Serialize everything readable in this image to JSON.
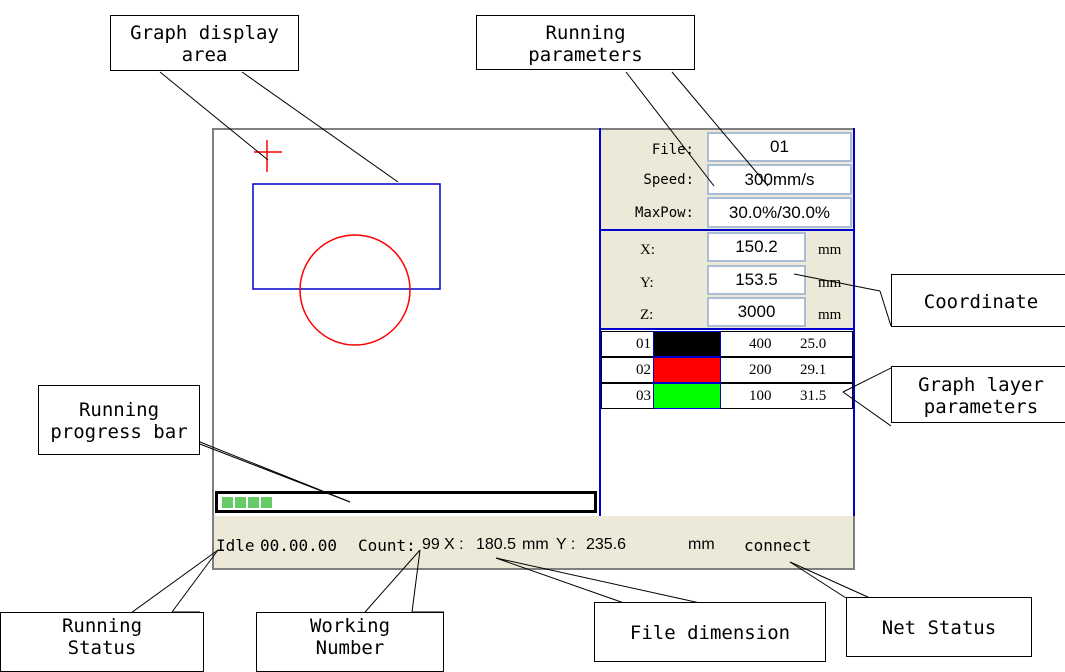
{
  "callouts": {
    "graph_display_area": "Graph display\narea",
    "running_parameters": "Running\nparameters",
    "coordinate": "Coordinate",
    "graph_layer_parameters": "Graph layer\nparameters",
    "running_progress_bar": "Running\nprogress bar",
    "running_status": "Running\nStatus",
    "working_number": "Working\nNumber",
    "file_dimension": "File dimension",
    "net_status": "Net Status"
  },
  "params": {
    "file_label": "File:",
    "file_value": "01",
    "speed_label": "Speed:",
    "speed_value": "300mm/s",
    "maxpow_label": "MaxPow:",
    "maxpow_value": "30.0%/30.0%"
  },
  "coords": {
    "x_label": "X:",
    "x_value": "150.2",
    "y_label": "Y:",
    "y_value": "153.5",
    "z_label": "Z:",
    "z_value": "3000",
    "unit": "mm"
  },
  "layers": [
    {
      "num": "01",
      "color": "#000000",
      "speed": "400",
      "power": "25.0"
    },
    {
      "num": "02",
      "color": "#ff0000",
      "speed": "200",
      "power": "29.1"
    },
    {
      "num": "03",
      "color": "#00ff00",
      "speed": "100",
      "power": "31.5"
    }
  ],
  "progress": {
    "segments_filled": 4
  },
  "status": {
    "state": "Idle",
    "time": "00.00.00",
    "count_label": "Count:",
    "count": "99",
    "x_label": "X :",
    "x": "180.5",
    "x_unit": "mm",
    "y_label": "Y :",
    "y": "235.6",
    "y_unit": "mm",
    "net": "connect"
  },
  "colors": {
    "panel_border": "#0000cc",
    "rect_stroke": "#0000cc",
    "circle_stroke": "#ff0000",
    "cross": "#ff0000",
    "progress_fill": "#66cc66",
    "status_bg": "#ece9d8"
  }
}
